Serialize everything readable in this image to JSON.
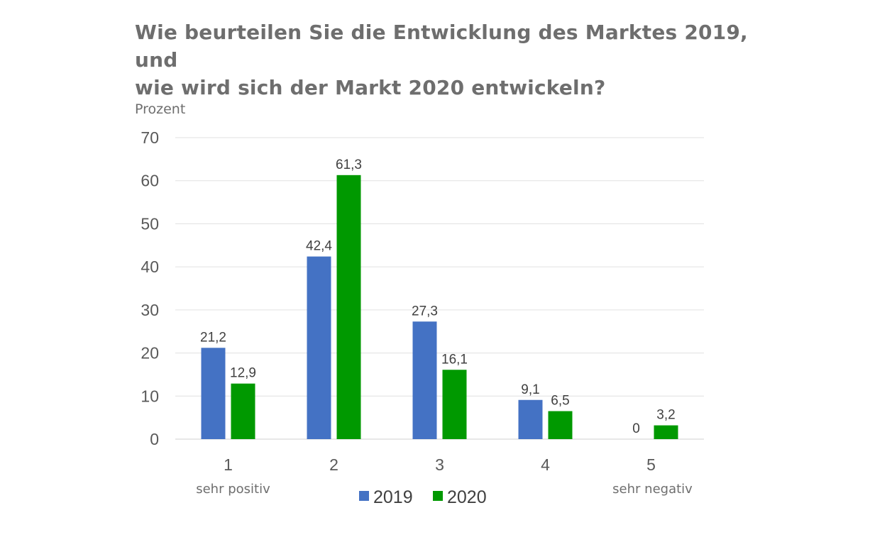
{
  "chart_data": {
    "type": "bar",
    "title_lines": [
      "Wie beurteilen Sie die Entwicklung des Marktes 2019, und",
      "wie wird sich der Markt 2020 entwickeln?"
    ],
    "ylabel": "Prozent",
    "xlabel": "",
    "ylim": [
      0,
      70
    ],
    "yticks": [
      0,
      10,
      20,
      30,
      40,
      50,
      60,
      70
    ],
    "grid": true,
    "categories": [
      "1",
      "2",
      "3",
      "4",
      "5"
    ],
    "category_sublabels": {
      "first": "sehr positiv",
      "last": "sehr negativ"
    },
    "series": [
      {
        "name": "2019",
        "color": "#4472c4",
        "values": [
          21.2,
          42.4,
          27.3,
          9.1,
          0
        ],
        "labels": [
          "21,2",
          "42,4",
          "27,3",
          "9,1",
          "0"
        ]
      },
      {
        "name": "2020",
        "color": "#009900",
        "values": [
          12.9,
          61.3,
          16.1,
          6.5,
          3.2
        ],
        "labels": [
          "12,9",
          "61,3",
          "16,1",
          "6,5",
          "3,2"
        ]
      }
    ],
    "legend_position": "bottom"
  }
}
